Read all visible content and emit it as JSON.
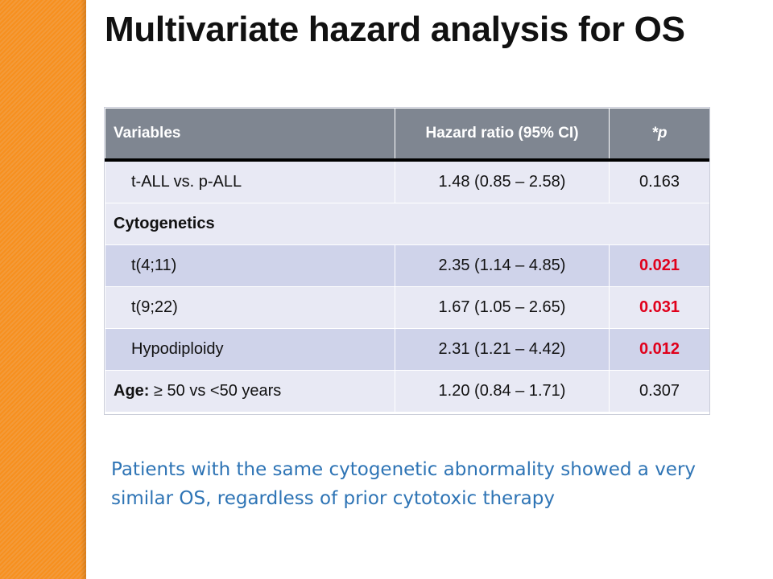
{
  "slide": {
    "title": "Multivariate hazard analysis for OS",
    "note": "Patients with the same cytogenetic abnormality showed a very similar OS, regardless of prior cytotoxic therapy",
    "colors": {
      "accent_bar": "#f7901e",
      "header_bg": "#7f8691",
      "significant_p": "#e0001b",
      "note_text": "#2e74b5"
    }
  },
  "table": {
    "headers": {
      "variables": "Variables",
      "hazard_ratio": "Hazard ratio (95% CI)",
      "p": "*p"
    },
    "rows": [
      {
        "variable": "t-ALL vs. p-ALL",
        "hazard_ratio": "1.48 (0.85 – 2.58)",
        "p": "0.163"
      },
      {
        "section": "Cytogenetics"
      },
      {
        "variable": "t(4;11)",
        "hazard_ratio": "2.35 (1.14 – 4.85)",
        "p": "0.021"
      },
      {
        "variable": "t(9;22)",
        "hazard_ratio": "1.67 (1.05 – 2.65)",
        "p": "0.031"
      },
      {
        "variable": "Hypodiploidy",
        "hazard_ratio": "2.31 (1.21 – 4.42)",
        "p": "0.012"
      },
      {
        "variable_label": "Age:",
        "variable_rest": " ≥ 50 vs <50 years",
        "hazard_ratio": "1.20 (0.84 – 1.71)",
        "p": "0.307"
      }
    ]
  }
}
